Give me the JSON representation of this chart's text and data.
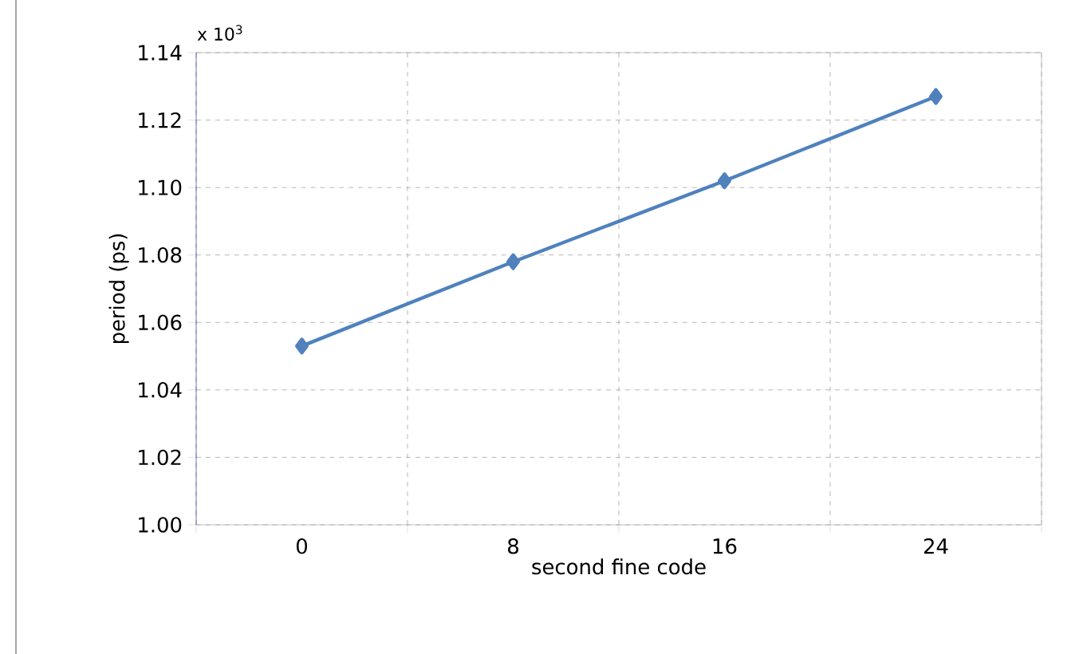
{
  "chart_data": {
    "type": "line",
    "xlabel": "second fine code",
    "ylabel": "period (ps)",
    "categories": [
      "0",
      "8",
      "16",
      "24"
    ],
    "series": [
      {
        "color": "#4f81bd",
        "values": [
          1.053,
          1.078,
          1.102,
          1.127
        ]
      }
    ],
    "ylim": [
      1.0,
      1.14
    ],
    "yticks": [
      {
        "value": 1.0,
        "label": "1.00"
      },
      {
        "value": 1.02,
        "label": "1.02"
      },
      {
        "value": 1.04,
        "label": "1.04"
      },
      {
        "value": 1.06,
        "label": "1.06"
      },
      {
        "value": 1.08,
        "label": "1.08"
      },
      {
        "value": 1.1,
        "label": "1.10"
      },
      {
        "value": 1.12,
        "label": "1.12"
      },
      {
        "value": 1.14,
        "label": "1.14"
      }
    ],
    "grid": true,
    "marker": "diamond",
    "line_style": "solid",
    "annotations": [
      "x 10$^{3}$"
    ]
  }
}
